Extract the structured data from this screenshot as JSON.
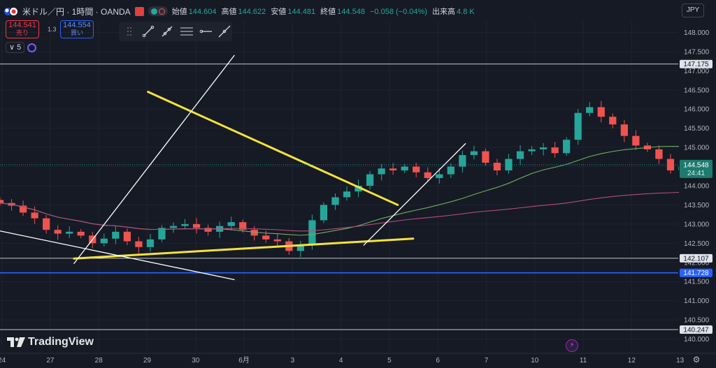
{
  "header": {
    "title": "米ドル／円 · 1時間 · OANDA",
    "ohlc": [
      {
        "key": "始値",
        "value": "144.604"
      },
      {
        "key": "高値",
        "value": "144.622"
      },
      {
        "key": "安値",
        "value": "144.481"
      },
      {
        "key": "終値",
        "value": "144.548"
      },
      {
        "key": "",
        "value": "−0.058 (−0.04%)"
      },
      {
        "key": "出来高",
        "value": "4.8 K"
      }
    ],
    "sell_price": "144.541",
    "sell_label": "売り",
    "buy_price": "144.554",
    "buy_label": "買い",
    "spread": "1.3",
    "indicator_count": "5"
  },
  "currency": "JPY",
  "logo_text": "TradingView",
  "colors": {
    "background": "#161a25",
    "up": "#26a69a",
    "down": "#ef5350",
    "ma_fast": "#6fae63",
    "ma_slow": "#b34d7c",
    "trendline_yellow": "#f5e23c",
    "trendline_white": "#ffffff",
    "level_blue": "#2962ff"
  },
  "chart_data": {
    "type": "candlestick",
    "symbol": "USDJPY",
    "timeframe": "1時間",
    "source": "OANDA",
    "x_tick_labels": [
      "24",
      "27",
      "28",
      "29",
      "30",
      "6月",
      "3",
      "4",
      "5",
      "6",
      "7",
      "10",
      "11",
      "12",
      "13"
    ],
    "y_ticks": [
      140.0,
      140.5,
      141.0,
      141.5,
      142.0,
      142.5,
      143.0,
      143.5,
      144.0,
      144.5,
      145.0,
      145.5,
      146.0,
      146.5,
      147.0,
      147.5,
      148.0
    ],
    "y_tick_labels": [
      "140.000",
      "140.500",
      "141.000",
      "141.500",
      "142.000",
      "142.500",
      "143.000",
      "143.500",
      "144.000",
      "144.500",
      "145.000",
      "145.500",
      "146.000",
      "146.500",
      "147.000",
      "147.500",
      "148.000"
    ],
    "ylim": [
      139.7,
      148.3
    ],
    "x_index_range": [
      0,
      220
    ],
    "last_price": 144.548,
    "last_price_label": "144.548",
    "countdown_label": "24:41",
    "close_series": [
      143.55,
      143.48,
      143.3,
      143.15,
      142.85,
      142.75,
      142.8,
      142.7,
      142.5,
      142.62,
      142.8,
      142.55,
      142.4,
      142.6,
      142.9,
      142.95,
      143.0,
      142.9,
      142.8,
      142.95,
      143.05,
      142.85,
      142.7,
      142.6,
      142.55,
      142.3,
      142.45,
      143.1,
      143.5,
      143.7,
      143.85,
      144.0,
      144.3,
      144.45,
      144.4,
      144.5,
      144.35,
      144.2,
      144.3,
      144.5,
      144.8,
      144.9,
      144.6,
      144.4,
      144.7,
      144.9,
      144.95,
      145.0,
      144.85,
      145.2,
      145.9,
      146.05,
      145.8,
      145.6,
      145.3,
      145.05,
      144.95,
      144.7,
      144.4,
      144.5,
      144.35,
      144.1,
      143.95,
      143.9,
      144.05,
      144.15,
      144.0,
      143.7,
      143.85,
      143.95,
      144.0,
      144.1,
      143.85,
      143.7,
      143.8,
      144.1,
      144.35,
      144.2,
      144.0,
      143.85,
      143.95,
      143.7,
      143.4,
      143.2,
      143.0,
      142.95,
      142.85,
      142.8,
      142.7,
      142.6,
      142.75,
      142.85,
      142.5,
      142.45,
      142.7,
      143.0,
      143.15,
      143.25,
      143.05,
      142.8,
      142.9,
      142.95,
      143.1,
      143.3,
      143.6,
      143.9,
      144.05,
      143.95,
      144.0,
      144.15,
      144.2,
      144.1,
      144.15,
      144.2,
      144.35,
      144.25,
      144.3,
      144.35,
      144.1,
      143.5,
      142.85,
      142.7,
      142.65,
      142.6,
      142.65,
      142.55,
      142.7,
      142.9,
      143.1,
      143.2,
      143.3,
      143.15,
      143.3,
      143.5,
      143.65,
      143.75,
      143.85,
      143.8,
      143.7,
      143.9,
      143.85,
      143.7,
      143.65,
      143.6,
      143.7,
      143.85,
      144.0,
      144.1,
      144.2,
      144.35,
      144.8,
      145.0,
      144.95,
      144.9,
      144.8,
      144.7,
      144.75,
      144.85,
      144.8,
      144.6,
      144.5,
      144.3,
      144.15,
      144.2,
      144.35,
      144.45,
      144.55,
      144.6,
      144.5,
      144.55,
      144.65,
      144.6,
      144.55,
      144.7,
      144.6,
      144.5,
      144.55,
      144.75,
      144.9,
      144.65,
      144.6,
      144.55
    ],
    "close_series_x_start": 0,
    "close_series_x_step": 3.75,
    "series": [
      {
        "id": "ma_fast",
        "period": 20
      },
      {
        "id": "ma_slow",
        "period": 75
      }
    ],
    "horizontal_levels": [
      {
        "price": 147.175,
        "label": "147.175",
        "color": "#ffffff"
      },
      {
        "price": 142.107,
        "label": "142.107",
        "color": "#ffffff"
      },
      {
        "price": 141.728,
        "label": "141.728",
        "color": "#2962ff"
      },
      {
        "price": 140.247,
        "label": "140.247",
        "color": "#ffffff"
      }
    ],
    "trendlines": [
      {
        "id": "yellow-down",
        "color": "#f5e23c",
        "from": [
          48,
          146.45
        ],
        "to": [
          129,
          143.5
        ]
      },
      {
        "id": "yellow-support",
        "color": "#f5e23c",
        "from": [
          24,
          142.1
        ],
        "to": [
          134,
          142.62
        ]
      },
      {
        "id": "white-steep",
        "color": "#ffffff",
        "from": [
          24,
          141.97
        ],
        "to": [
          76,
          147.4
        ]
      },
      {
        "id": "white-down",
        "color": "#ffffff",
        "from": [
          0,
          142.82
        ],
        "to": [
          76,
          141.55
        ]
      },
      {
        "id": "white-rise",
        "color": "#ffffff",
        "from": [
          118,
          142.45
        ],
        "to": [
          151,
          145.1
        ]
      }
    ]
  }
}
